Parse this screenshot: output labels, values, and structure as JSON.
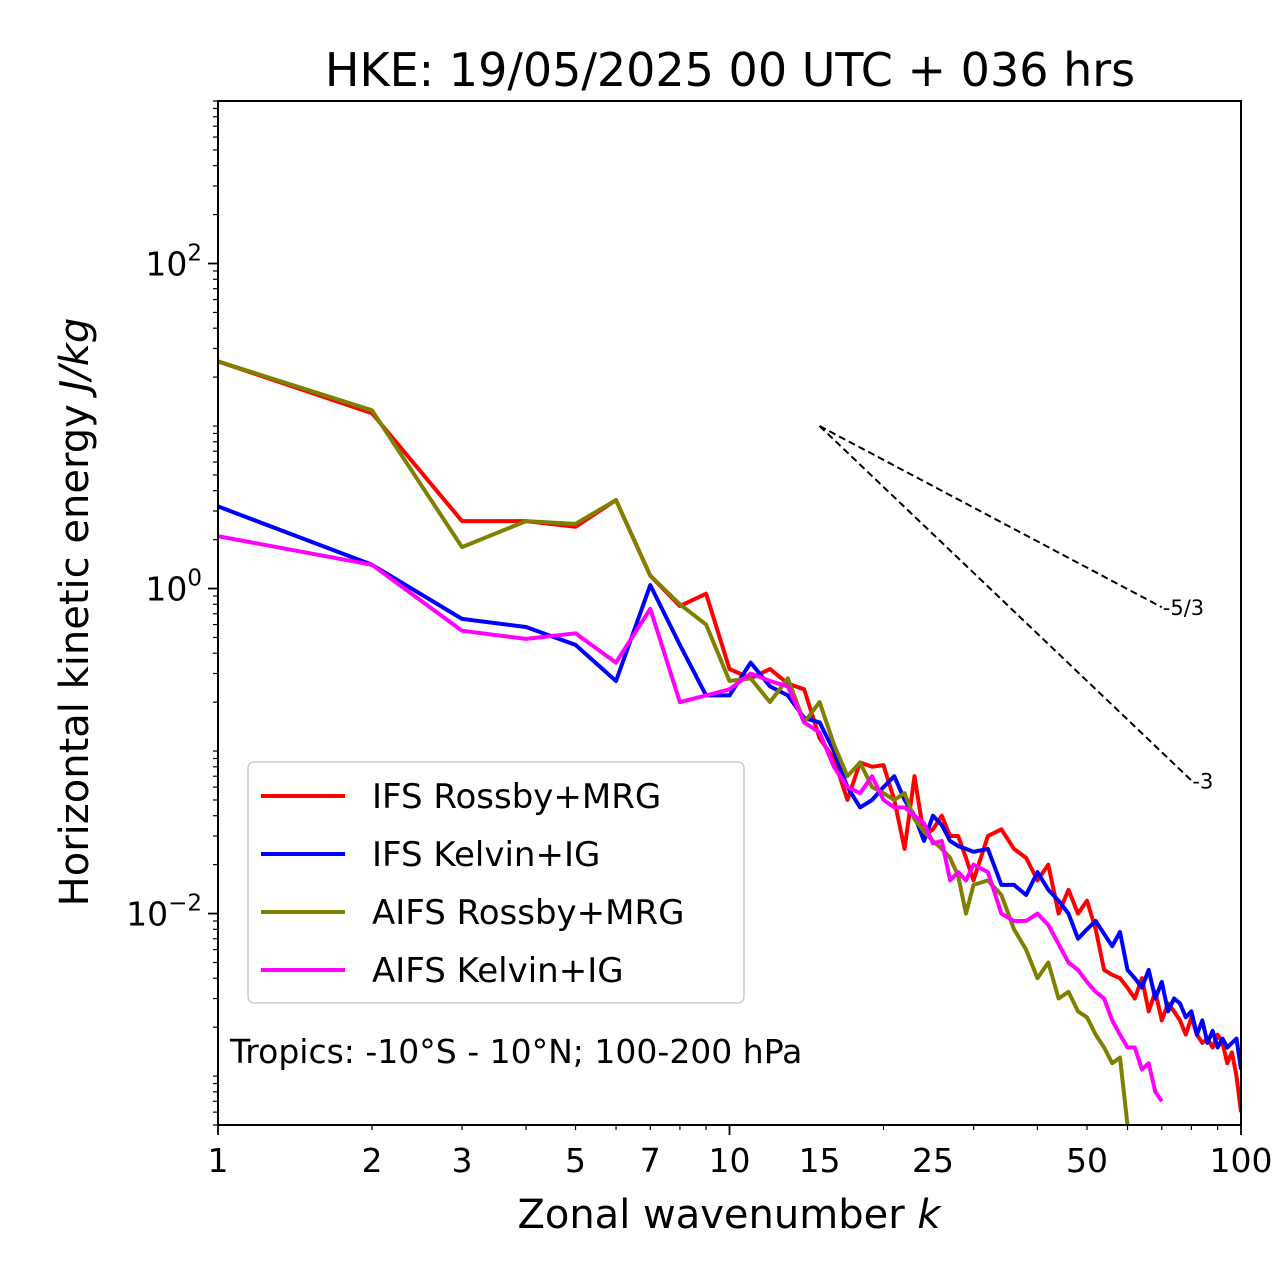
{
  "chart_data": {
    "type": "line",
    "title": "HKE: 19/05/2025 00 UTC + 036 hrs",
    "xlabel": "Zonal wavenumber ",
    "xlabel_var": "k",
    "ylabel": "Horizontal kinetic energy ",
    "ylabel_units": "J/kg",
    "x_scale": "log",
    "y_scale": "log",
    "xlim": [
      1,
      100
    ],
    "ylim": [
      0.0005,
      1000
    ],
    "x_ticks": [
      1,
      2,
      3,
      5,
      7,
      10,
      15,
      25,
      50,
      100
    ],
    "x_tick_labels": [
      "1",
      "2",
      "3",
      "5",
      "7",
      "10",
      "15",
      "25",
      "50",
      "100"
    ],
    "y_ticks": [
      0.01,
      1,
      100
    ],
    "y_tick_labels": [
      {
        "base": "10",
        "exp": "−2"
      },
      {
        "base": "10",
        "exp": "0"
      },
      {
        "base": "10",
        "exp": "2"
      }
    ],
    "grid": false,
    "legend_placement": "lower-left",
    "annotation": "Tropics: -10°S - 10°N; 100-200 hPa",
    "reference_slopes": [
      {
        "label": "-5/3",
        "slope": -1.6667,
        "x0": 15,
        "y0": 10,
        "x1": 70
      },
      {
        "label": "-3",
        "slope": -3,
        "x0": 15,
        "y0": 10,
        "x1": 80
      }
    ],
    "series": [
      {
        "name": "IFS Rossby+MRG",
        "color": "#ff0000",
        "x": [
          1,
          2,
          3,
          4,
          5,
          6,
          7,
          8,
          9,
          10,
          11,
          12,
          13,
          14,
          15,
          16,
          17,
          18,
          19,
          20,
          21,
          22,
          23,
          24,
          25,
          26,
          27,
          28,
          29,
          30,
          32,
          34,
          36,
          38,
          40,
          42,
          44,
          46,
          48,
          50,
          52,
          54,
          56,
          58,
          60,
          62,
          64,
          66,
          68,
          70,
          72,
          74,
          76,
          78,
          80,
          82,
          84,
          86,
          88,
          90,
          92,
          94,
          96,
          98,
          100
        ],
        "values": [
          25,
          12,
          2.6,
          2.6,
          2.4,
          3.5,
          1.2,
          0.78,
          0.93,
          0.32,
          0.28,
          0.32,
          0.26,
          0.24,
          0.12,
          0.09,
          0.05,
          0.085,
          0.08,
          0.082,
          0.05,
          0.025,
          0.07,
          0.03,
          0.033,
          0.04,
          0.03,
          0.03,
          0.022,
          0.016,
          0.03,
          0.033,
          0.025,
          0.022,
          0.016,
          0.02,
          0.01,
          0.014,
          0.01,
          0.012,
          0.008,
          0.0045,
          0.0042,
          0.004,
          0.0035,
          0.003,
          0.004,
          0.0025,
          0.0033,
          0.0022,
          0.0028,
          0.0025,
          0.0022,
          0.0018,
          0.0023,
          0.0018,
          0.0016,
          0.0017,
          0.0015,
          0.0018,
          0.0016,
          0.0012,
          0.0014,
          0.001,
          0.0006
        ]
      },
      {
        "name": "IFS Kelvin+IG",
        "color": "#0000ff",
        "x": [
          1,
          2,
          3,
          4,
          5,
          6,
          7,
          8,
          9,
          10,
          11,
          12,
          13,
          14,
          15,
          16,
          17,
          18,
          19,
          20,
          21,
          22,
          23,
          24,
          25,
          26,
          27,
          28,
          29,
          30,
          32,
          34,
          36,
          38,
          40,
          42,
          44,
          46,
          48,
          50,
          52,
          54,
          56,
          58,
          60,
          62,
          64,
          66,
          68,
          70,
          72,
          74,
          76,
          78,
          80,
          82,
          84,
          86,
          88,
          90,
          92,
          94,
          96,
          98,
          100
        ],
        "values": [
          3.2,
          1.4,
          0.65,
          0.58,
          0.45,
          0.27,
          1.05,
          0.45,
          0.22,
          0.22,
          0.35,
          0.25,
          0.22,
          0.16,
          0.15,
          0.1,
          0.06,
          0.045,
          0.05,
          0.06,
          0.07,
          0.05,
          0.04,
          0.028,
          0.04,
          0.035,
          0.028,
          0.026,
          0.025,
          0.024,
          0.025,
          0.015,
          0.015,
          0.013,
          0.018,
          0.014,
          0.012,
          0.01,
          0.007,
          0.008,
          0.009,
          0.0075,
          0.0063,
          0.0077,
          0.0045,
          0.004,
          0.0035,
          0.0045,
          0.003,
          0.0038,
          0.0025,
          0.003,
          0.0028,
          0.0023,
          0.0025,
          0.0018,
          0.0022,
          0.0016,
          0.0019,
          0.0015,
          0.0017,
          0.0015,
          0.0016,
          0.0017,
          0.0011
        ]
      },
      {
        "name": "AIFS Rossby+MRG",
        "color": "#808000",
        "x": [
          1,
          2,
          3,
          4,
          5,
          6,
          7,
          8,
          9,
          10,
          11,
          12,
          13,
          14,
          15,
          16,
          17,
          18,
          19,
          20,
          21,
          22,
          23,
          24,
          25,
          26,
          27,
          28,
          29,
          30,
          32,
          34,
          36,
          38,
          40,
          42,
          44,
          46,
          48,
          50,
          52,
          54,
          56,
          58,
          60
        ],
        "values": [
          25,
          12.5,
          1.8,
          2.6,
          2.5,
          3.5,
          1.2,
          0.8,
          0.6,
          0.27,
          0.28,
          0.2,
          0.28,
          0.15,
          0.2,
          0.11,
          0.07,
          0.085,
          0.06,
          0.055,
          0.05,
          0.055,
          0.038,
          0.032,
          0.028,
          0.025,
          0.022,
          0.017,
          0.01,
          0.015,
          0.016,
          0.013,
          0.008,
          0.006,
          0.004,
          0.005,
          0.003,
          0.0033,
          0.0025,
          0.0023,
          0.0018,
          0.0015,
          0.0012,
          0.0013,
          0.0005
        ]
      },
      {
        "name": "AIFS Kelvin+IG",
        "color": "#ff00ff",
        "x": [
          1,
          2,
          3,
          4,
          5,
          6,
          7,
          8,
          9,
          10,
          11,
          12,
          13,
          14,
          15,
          16,
          17,
          18,
          19,
          20,
          21,
          22,
          23,
          24,
          25,
          26,
          27,
          28,
          29,
          30,
          32,
          34,
          36,
          38,
          40,
          42,
          44,
          46,
          48,
          50,
          52,
          54,
          56,
          58,
          60,
          62,
          64,
          66,
          68,
          70
        ],
        "values": [
          2.1,
          1.4,
          0.55,
          0.49,
          0.53,
          0.35,
          0.75,
          0.2,
          0.22,
          0.24,
          0.3,
          0.27,
          0.25,
          0.15,
          0.13,
          0.08,
          0.06,
          0.055,
          0.07,
          0.05,
          0.045,
          0.045,
          0.04,
          0.036,
          0.027,
          0.028,
          0.016,
          0.018,
          0.016,
          0.02,
          0.018,
          0.01,
          0.009,
          0.009,
          0.01,
          0.0085,
          0.0065,
          0.005,
          0.0045,
          0.0038,
          0.0033,
          0.003,
          0.0022,
          0.0018,
          0.0015,
          0.0015,
          0.0011,
          0.0012,
          0.0008,
          0.0007
        ]
      }
    ]
  }
}
